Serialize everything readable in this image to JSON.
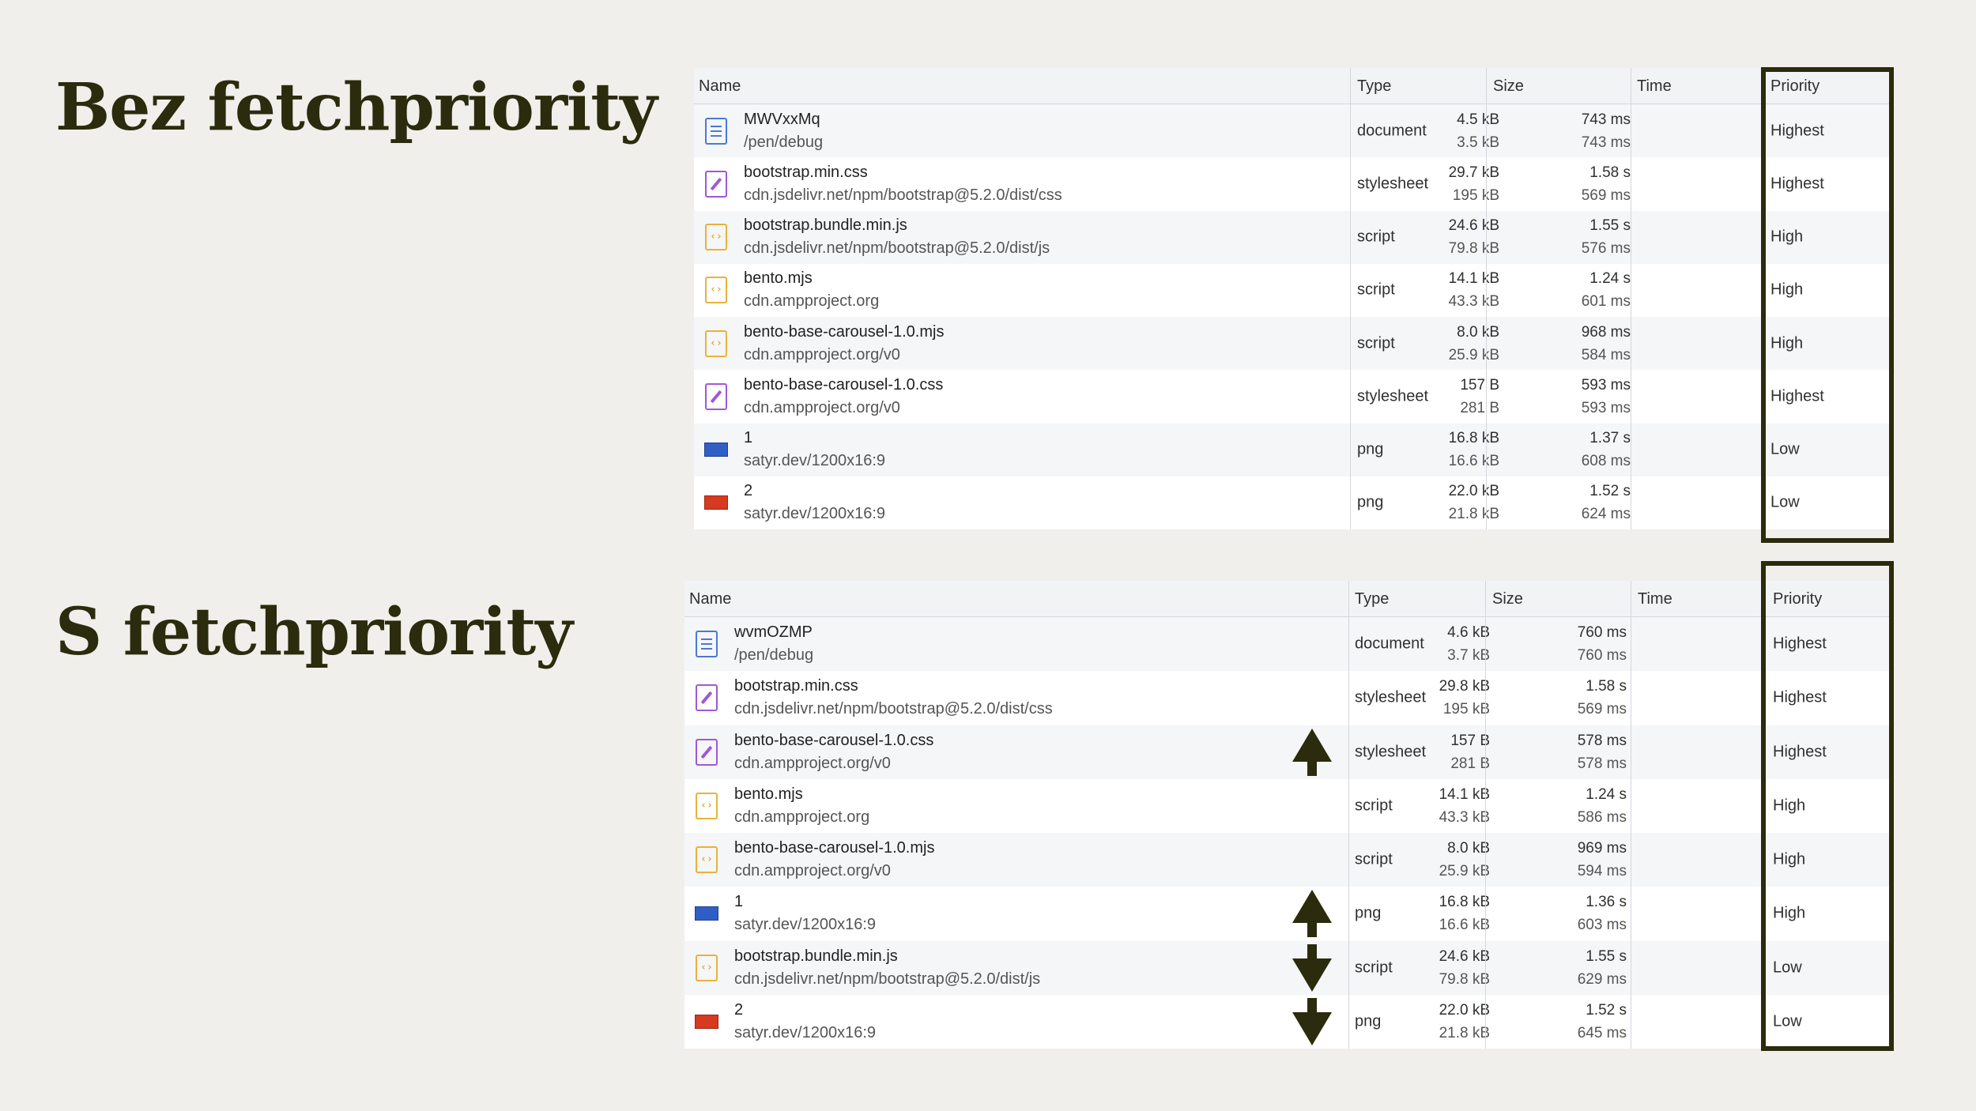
{
  "titles": {
    "without": "Bez fetchpriority",
    "with": "S fetchpriority"
  },
  "columns": {
    "name": "Name",
    "type": "Type",
    "size": "Size",
    "time": "Time",
    "priority": "Priority"
  },
  "table_without": [
    {
      "icon": "document-icon",
      "name": "MWVxxMq",
      "domain": "/pen/debug",
      "type": "document",
      "size": "4.5 kB",
      "resource": "3.5 kB",
      "time": "743 ms",
      "latency": "743 ms",
      "priority": "Highest"
    },
    {
      "icon": "stylesheet-icon",
      "name": "bootstrap.min.css",
      "domain": "cdn.jsdelivr.net/npm/bootstrap@5.2.0/dist/css",
      "type": "stylesheet",
      "size": "29.7 kB",
      "resource": "195 kB",
      "time": "1.58 s",
      "latency": "569 ms",
      "priority": "Highest"
    },
    {
      "icon": "script-icon",
      "name": "bootstrap.bundle.min.js",
      "domain": "cdn.jsdelivr.net/npm/bootstrap@5.2.0/dist/js",
      "type": "script",
      "size": "24.6 kB",
      "resource": "79.8 kB",
      "time": "1.55 s",
      "latency": "576 ms",
      "priority": "High"
    },
    {
      "icon": "script-icon",
      "name": "bento.mjs",
      "domain": "cdn.ampproject.org",
      "type": "script",
      "size": "14.1 kB",
      "resource": "43.3 kB",
      "time": "1.24 s",
      "latency": "601 ms",
      "priority": "High"
    },
    {
      "icon": "script-icon",
      "name": "bento-base-carousel-1.0.mjs",
      "domain": "cdn.ampproject.org/v0",
      "type": "script",
      "size": "8.0 kB",
      "resource": "25.9 kB",
      "time": "968 ms",
      "latency": "584 ms",
      "priority": "High"
    },
    {
      "icon": "stylesheet-icon",
      "name": "bento-base-carousel-1.0.css",
      "domain": "cdn.ampproject.org/v0",
      "type": "stylesheet",
      "size": "157 B",
      "resource": "281 B",
      "time": "593 ms",
      "latency": "593 ms",
      "priority": "Highest"
    },
    {
      "icon": "png-blue-icon",
      "name": "1",
      "domain": "satyr.dev/1200x16:9",
      "type": "png",
      "size": "16.8 kB",
      "resource": "16.6 kB",
      "time": "1.37 s",
      "latency": "608 ms",
      "priority": "Low"
    },
    {
      "icon": "png-red-icon",
      "name": "2",
      "domain": "satyr.dev/1200x16:9",
      "type": "png",
      "size": "22.0 kB",
      "resource": "21.8 kB",
      "time": "1.52 s",
      "latency": "624 ms",
      "priority": "Low"
    }
  ],
  "table_with": [
    {
      "icon": "document-icon",
      "name": "wvmOZMP",
      "domain": "/pen/debug",
      "type": "document",
      "size": "4.6 kB",
      "resource": "3.7 kB",
      "time": "760 ms",
      "latency": "760 ms",
      "priority": "Highest",
      "arrow": ""
    },
    {
      "icon": "stylesheet-icon",
      "name": "bootstrap.min.css",
      "domain": "cdn.jsdelivr.net/npm/bootstrap@5.2.0/dist/css",
      "type": "stylesheet",
      "size": "29.8 kB",
      "resource": "195 kB",
      "time": "1.58 s",
      "latency": "569 ms",
      "priority": "Highest",
      "arrow": ""
    },
    {
      "icon": "stylesheet-icon",
      "name": "bento-base-carousel-1.0.css",
      "domain": "cdn.ampproject.org/v0",
      "type": "stylesheet",
      "size": "157 B",
      "resource": "281 B",
      "time": "578 ms",
      "latency": "578 ms",
      "priority": "Highest",
      "arrow": "up"
    },
    {
      "icon": "script-icon",
      "name": "bento.mjs",
      "domain": "cdn.ampproject.org",
      "type": "script",
      "size": "14.1 kB",
      "resource": "43.3 kB",
      "time": "1.24 s",
      "latency": "586 ms",
      "priority": "High",
      "arrow": ""
    },
    {
      "icon": "script-icon",
      "name": "bento-base-carousel-1.0.mjs",
      "domain": "cdn.ampproject.org/v0",
      "type": "script",
      "size": "8.0 kB",
      "resource": "25.9 kB",
      "time": "969 ms",
      "latency": "594 ms",
      "priority": "High",
      "arrow": ""
    },
    {
      "icon": "png-blue-icon",
      "name": "1",
      "domain": "satyr.dev/1200x16:9",
      "type": "png",
      "size": "16.8 kB",
      "resource": "16.6 kB",
      "time": "1.36 s",
      "latency": "603 ms",
      "priority": "High",
      "arrow": "up"
    },
    {
      "icon": "script-icon",
      "name": "bootstrap.bundle.min.js",
      "domain": "cdn.jsdelivr.net/npm/bootstrap@5.2.0/dist/js",
      "type": "script",
      "size": "24.6 kB",
      "resource": "79.8 kB",
      "time": "1.55 s",
      "latency": "629 ms",
      "priority": "Low",
      "arrow": "down"
    },
    {
      "icon": "png-red-icon",
      "name": "2",
      "domain": "satyr.dev/1200x16:9",
      "type": "png",
      "size": "22.0 kB",
      "resource": "21.8 kB",
      "time": "1.52 s",
      "latency": "645 ms",
      "priority": "Low",
      "arrow": "down"
    }
  ],
  "colors": {
    "title": "#2b2b0d",
    "highlight_box": "#2b2b0d",
    "arrow": "#2b2b0d",
    "document": "#4a79d6",
    "stylesheet": "#a157d6",
    "script": "#e8b33a"
  }
}
